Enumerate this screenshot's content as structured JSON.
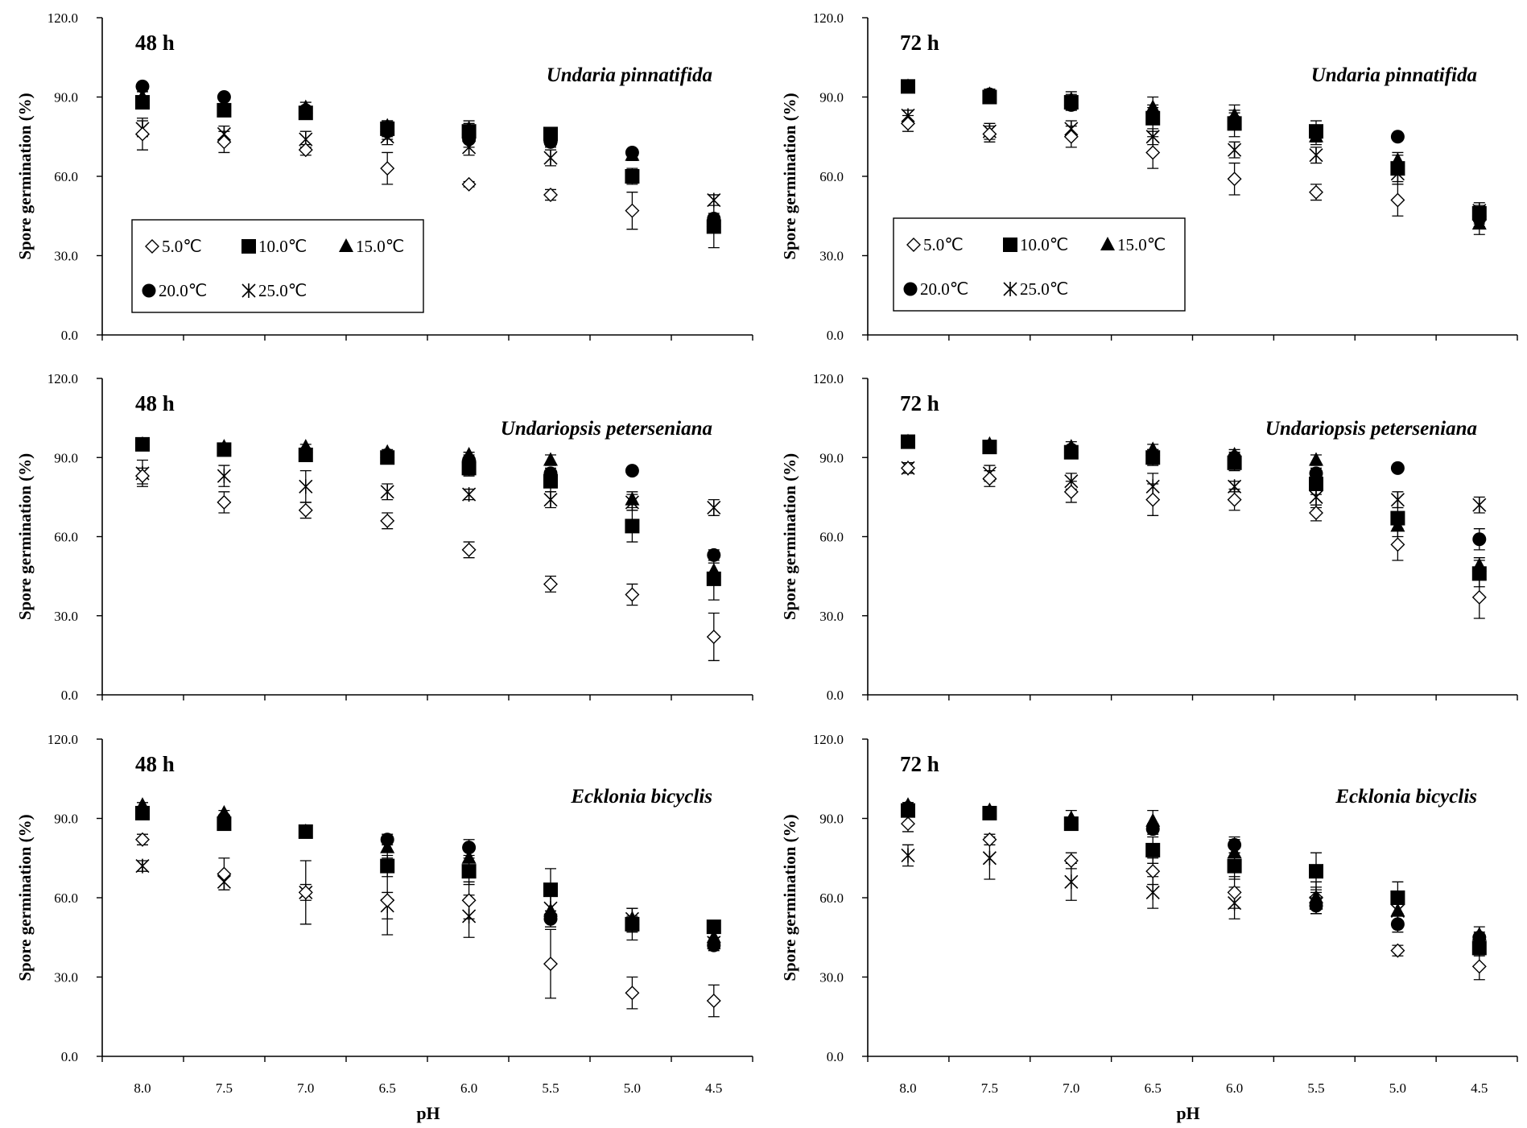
{
  "chart_data": {
    "type": "scatter",
    "y_axis_label": "Spore germination (%)",
    "x_axis_label": "pH",
    "categories": [
      "8.0",
      "7.5",
      "7.0",
      "6.5",
      "6.0",
      "5.5",
      "5.0",
      "4.5"
    ],
    "y_ticks": [
      "0.0",
      "30.0",
      "60.0",
      "90.0",
      "120.0"
    ],
    "ylim": [
      0,
      120
    ],
    "series_names": [
      "5.0℃",
      "10.0℃",
      "15.0℃",
      "20.0℃",
      "25.0℃"
    ],
    "legend": {
      "items": [
        {
          "label": "5.0℃",
          "marker": "open-diamond"
        },
        {
          "label": "10.0℃",
          "marker": "filled-square"
        },
        {
          "label": "15.0℃",
          "marker": "filled-triangle"
        },
        {
          "label": "20.0℃",
          "marker": "filled-circle"
        },
        {
          "label": "25.0℃",
          "marker": "asterisk"
        }
      ]
    },
    "panels": [
      {
        "time_label": "48 h",
        "species": "Undaria pinnatifida",
        "has_legend": true,
        "series": [
          {
            "name": "5.0℃",
            "marker": "open-diamond",
            "values": [
              76,
              73,
              70,
              63,
              57,
              53,
              47,
              43
            ],
            "errors": [
              6,
              4,
              2,
              6,
              1,
              2,
              7,
              10
            ]
          },
          {
            "name": "10.0℃",
            "marker": "filled-square",
            "values": [
              88,
              85,
              84,
              78,
              77,
              76,
              60,
              41
            ],
            "errors": [
              2,
              2,
              2,
              3,
              4,
              2,
              2,
              2
            ]
          },
          {
            "name": "15.0℃",
            "marker": "filled-triangle",
            "values": [
              90,
              87,
              86,
              79,
              78,
              75,
              68,
              43
            ],
            "errors": [
              2,
              2,
              2,
              2,
              2,
              2,
              2,
              2
            ]
          },
          {
            "name": "20.0℃",
            "marker": "filled-circle",
            "values": [
              94,
              90,
              85,
              77,
              74,
              73,
              69,
              44
            ],
            "errors": [
              1,
              1,
              1,
              3,
              3,
              2,
              1,
              2
            ]
          },
          {
            "name": "25.0℃",
            "marker": "asterisk",
            "values": [
              78,
              76,
              74,
              75,
              71,
              67,
              60,
              51
            ],
            "errors": [
              3,
              3,
              3,
              3,
              3,
              3,
              3,
              2
            ]
          }
        ]
      },
      {
        "time_label": "72 h",
        "species": "Undaria pinnatifida",
        "has_legend": true,
        "series": [
          {
            "name": "5.0℃",
            "marker": "open-diamond",
            "values": [
              80,
              76,
              75,
              69,
              59,
              54,
              51,
              45
            ],
            "errors": [
              3,
              3,
              4,
              6,
              6,
              3,
              6,
              3
            ]
          },
          {
            "name": "10.0℃",
            "marker": "filled-square",
            "values": [
              94,
              90,
              88,
              82,
              80,
              77,
              63,
              46
            ],
            "errors": [
              1,
              2,
              3,
              5,
              5,
              4,
              5,
              3
            ]
          },
          {
            "name": "15.0℃",
            "marker": "filled-triangle",
            "values": [
              94,
              91,
              89,
              86,
              83,
              75,
              66,
              42
            ],
            "errors": [
              1,
              2,
              3,
              4,
              4,
              3,
              3,
              4
            ]
          },
          {
            "name": "20.0℃",
            "marker": "filled-circle",
            "values": [
              94,
              91,
              87,
              83,
              81,
              76,
              75,
              44
            ],
            "errors": [
              1,
              2,
              2,
              3,
              3,
              2,
              1,
              3
            ]
          },
          {
            "name": "25.0℃",
            "marker": "asterisk",
            "values": [
              83,
              77,
              78,
              75,
              70,
              68,
              61,
              47
            ],
            "errors": [
              2,
              3,
              3,
              3,
              3,
              3,
              4,
              3
            ]
          }
        ]
      },
      {
        "time_label": "48 h",
        "species": "Undariopsis peterseniana",
        "has_legend": false,
        "series": [
          {
            "name": "5.0℃",
            "marker": "open-diamond",
            "values": [
              83,
              73,
              70,
              66,
              55,
              42,
              38,
              22
            ],
            "errors": [
              3,
              4,
              3,
              3,
              3,
              3,
              4,
              9
            ]
          },
          {
            "name": "10.0℃",
            "marker": "filled-square",
            "values": [
              95,
              93,
              91,
              90,
              86,
              81,
              64,
              44
            ],
            "errors": [
              1,
              2,
              2,
              2,
              3,
              4,
              6,
              8
            ]
          },
          {
            "name": "15.0℃",
            "marker": "filled-triangle",
            "values": [
              95,
              94,
              94,
              92,
              91,
              89,
              74,
              47
            ],
            "errors": [
              1,
              1,
              1,
              1,
              1,
              2,
              3,
              3
            ]
          },
          {
            "name": "20.0℃",
            "marker": "filled-circle",
            "values": [
              95,
              93,
              92,
              91,
              89,
              84,
              85,
              53
            ],
            "errors": [
              1,
              1,
              1,
              1,
              2,
              2,
              1,
              2
            ]
          },
          {
            "name": "25.0℃",
            "marker": "asterisk",
            "values": [
              84,
              83,
              79,
              77,
              76,
              74,
              73,
              71
            ],
            "errors": [
              5,
              4,
              6,
              3,
              2,
              3,
              3,
              3
            ]
          }
        ]
      },
      {
        "time_label": "72 h",
        "species": "Undariopsis peterseniana",
        "has_legend": false,
        "series": [
          {
            "name": "5.0℃",
            "marker": "open-diamond",
            "values": [
              86,
              82,
              77,
              74,
              74,
              69,
              57,
              37
            ],
            "errors": [
              2,
              3,
              4,
              6,
              4,
              3,
              6,
              8
            ]
          },
          {
            "name": "10.0℃",
            "marker": "filled-square",
            "values": [
              96,
              94,
              92,
              90,
              88,
              80,
              67,
              46
            ],
            "errors": [
              1,
              2,
              2,
              3,
              3,
              4,
              4,
              5
            ]
          },
          {
            "name": "15.0℃",
            "marker": "filled-triangle",
            "values": [
              96,
              95,
              94,
              93,
              91,
              89,
              64,
              49
            ],
            "errors": [
              1,
              1,
              2,
              2,
              2,
              2,
              4,
              3
            ]
          },
          {
            "name": "20.0℃",
            "marker": "filled-circle",
            "values": [
              96,
              94,
              93,
              91,
              90,
              84,
              86,
              59
            ],
            "errors": [
              1,
              1,
              1,
              2,
              2,
              2,
              1,
              4
            ]
          },
          {
            "name": "25.0℃",
            "marker": "asterisk",
            "values": [
              86,
              84,
              81,
              79,
              79,
              75,
              74,
              72
            ],
            "errors": [
              2,
              3,
              3,
              5,
              2,
              4,
              3,
              3
            ]
          }
        ]
      },
      {
        "time_label": "48 h",
        "species": "Ecklonia bicyclis",
        "has_legend": false,
        "series": [
          {
            "name": "5.0℃",
            "marker": "open-diamond",
            "values": [
              82,
              69,
              62,
              59,
              59,
              35,
              24,
              21
            ],
            "errors": [
              2,
              6,
              12,
              13,
              7,
              13,
              6,
              6
            ]
          },
          {
            "name": "10.0℃",
            "marker": "filled-square",
            "values": [
              92,
              88,
              85,
              72,
              70,
              63,
              50,
              49
            ],
            "errors": [
              2,
              2,
              2,
              4,
              5,
              8,
              6,
              2
            ]
          },
          {
            "name": "15.0℃",
            "marker": "filled-triangle",
            "values": [
              95,
              92,
              85,
              79,
              75,
              55,
              52,
              45
            ],
            "errors": [
              1,
              1,
              2,
              4,
              5,
              6,
              4,
              3
            ]
          },
          {
            "name": "20.0℃",
            "marker": "filled-circle",
            "values": [
              92,
              90,
              85,
              82,
              79,
              52,
              50,
              42
            ],
            "errors": [
              1,
              1,
              1,
              2,
              3,
              3,
              3,
              2
            ]
          },
          {
            "name": "25.0℃",
            "marker": "asterisk",
            "values": [
              72,
              66,
              62,
              57,
              53,
              56,
              52,
              43
            ],
            "errors": [
              2,
              3,
              3,
              5,
              8,
              5,
              4,
              2
            ]
          }
        ]
      },
      {
        "time_label": "72 h",
        "species": "Ecklonia bicyclis",
        "has_legend": false,
        "series": [
          {
            "name": "5.0℃",
            "marker": "open-diamond",
            "values": [
              88,
              82,
              74,
              70,
              62,
              60,
              40,
              34
            ],
            "errors": [
              3,
              2,
              3,
              5,
              6,
              4,
              2,
              5
            ]
          },
          {
            "name": "10.0℃",
            "marker": "filled-square",
            "values": [
              93,
              92,
              88,
              78,
              72,
              70,
              60,
              41
            ],
            "errors": [
              2,
              2,
              2,
              5,
              5,
              7,
              6,
              3
            ]
          },
          {
            "name": "15.0℃",
            "marker": "filled-triangle",
            "values": [
              95,
              93,
              90,
              89,
              77,
              60,
              55,
              46
            ],
            "errors": [
              1,
              1,
              3,
              4,
              5,
              6,
              4,
              3
            ]
          },
          {
            "name": "20.0℃",
            "marker": "filled-circle",
            "values": [
              94,
              92,
              88,
              86,
              80,
              57,
              50,
              45
            ],
            "errors": [
              1,
              1,
              2,
              2,
              3,
              3,
              3,
              2
            ]
          },
          {
            "name": "25.0℃",
            "marker": "asterisk",
            "values": [
              76,
              75,
              66,
              62,
              58,
              58,
              55,
              43
            ],
            "errors": [
              4,
              8,
              7,
              6,
              6,
              4,
              4,
              3
            ]
          }
        ]
      }
    ]
  }
}
